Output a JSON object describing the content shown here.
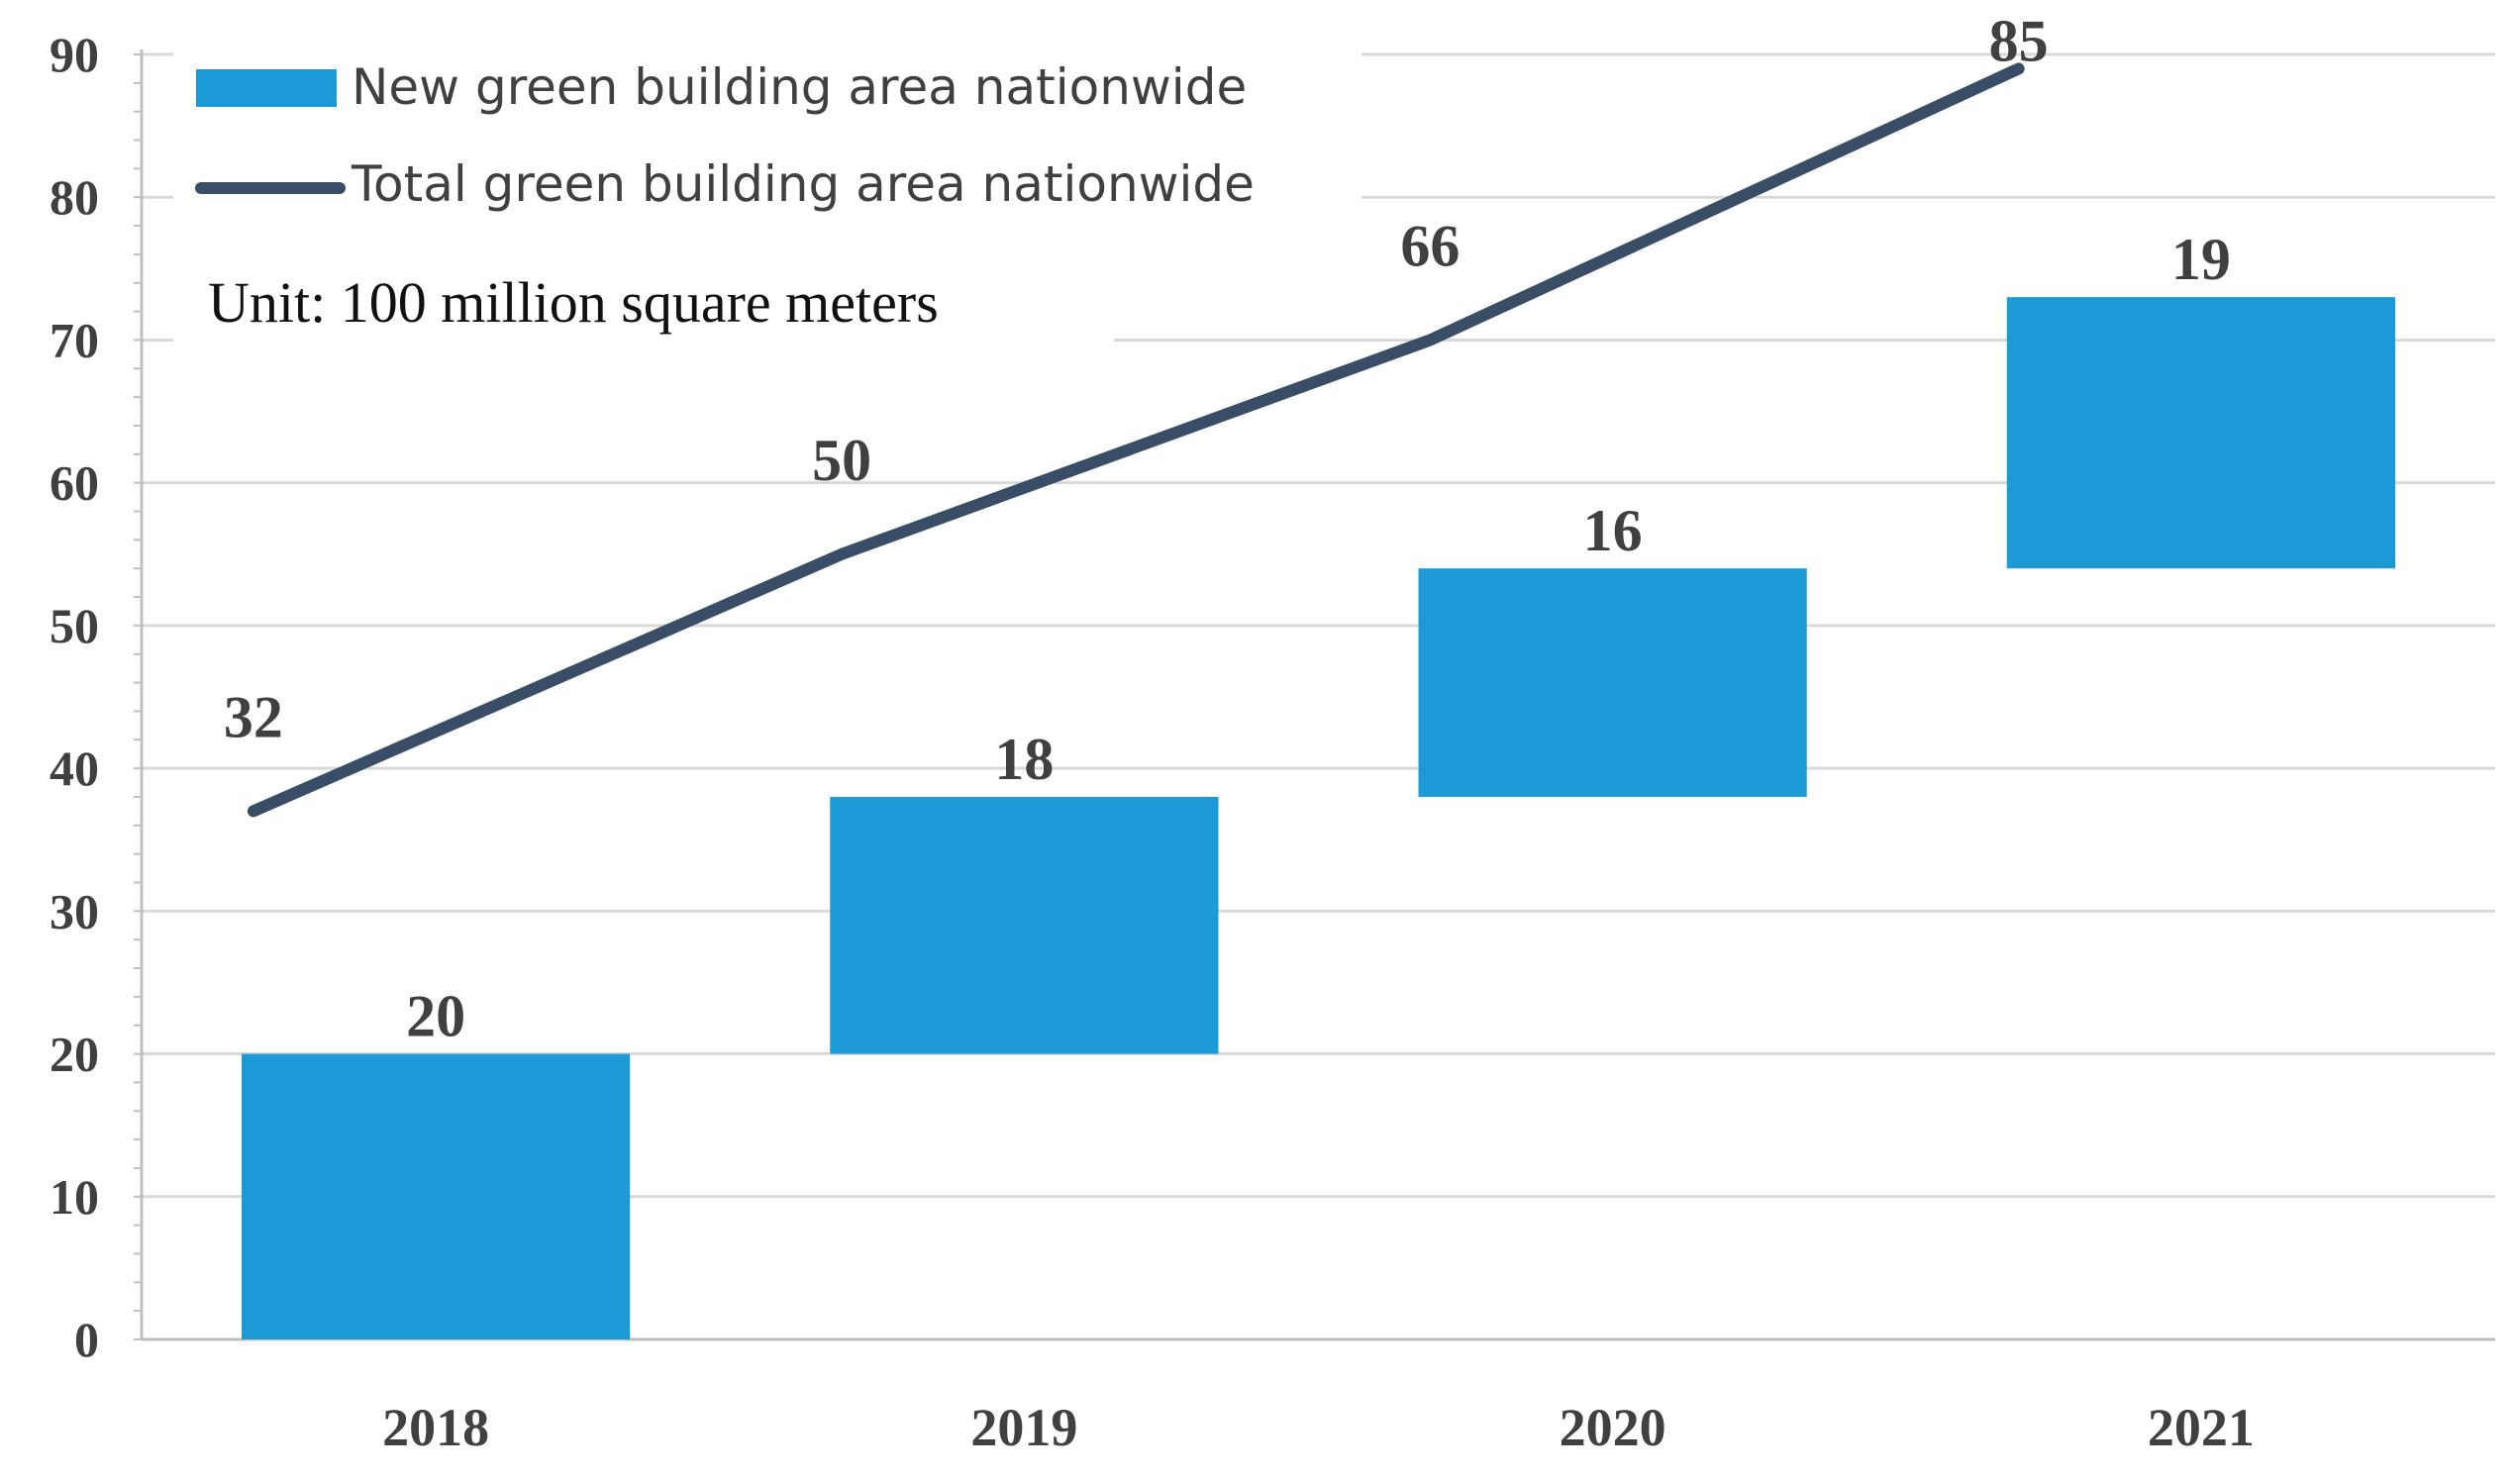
{
  "chart_data": {
    "type": "bar",
    "title": "",
    "xlabel": "",
    "ylabel": "",
    "unit_note": "Unit: 100 million square meters",
    "ylim": [
      0,
      90
    ],
    "yticks": [
      0,
      10,
      20,
      30,
      40,
      50,
      60,
      70,
      80,
      90
    ],
    "categories": [
      "2018",
      "2019",
      "2020",
      "2021"
    ],
    "grid": true,
    "legend_position": "top-left",
    "series": [
      {
        "name": "New green building area nationwide",
        "kind": "floating-bar",
        "color": "#1b9ad6",
        "values": [
          20,
          18,
          16,
          19
        ],
        "bar_ranges": [
          [
            0,
            20
          ],
          [
            20,
            38
          ],
          [
            38,
            54
          ],
          [
            54,
            73
          ]
        ],
        "labels": [
          "20",
          "18",
          "16",
          "19"
        ]
      },
      {
        "name": "Total green building area nationwide",
        "kind": "line",
        "color": "#3a4d66",
        "values": [
          32,
          50,
          66,
          85
        ],
        "plotted_y": [
          37,
          55,
          70,
          89
        ],
        "labels": [
          "32",
          "50",
          "66",
          "85"
        ]
      }
    ]
  }
}
